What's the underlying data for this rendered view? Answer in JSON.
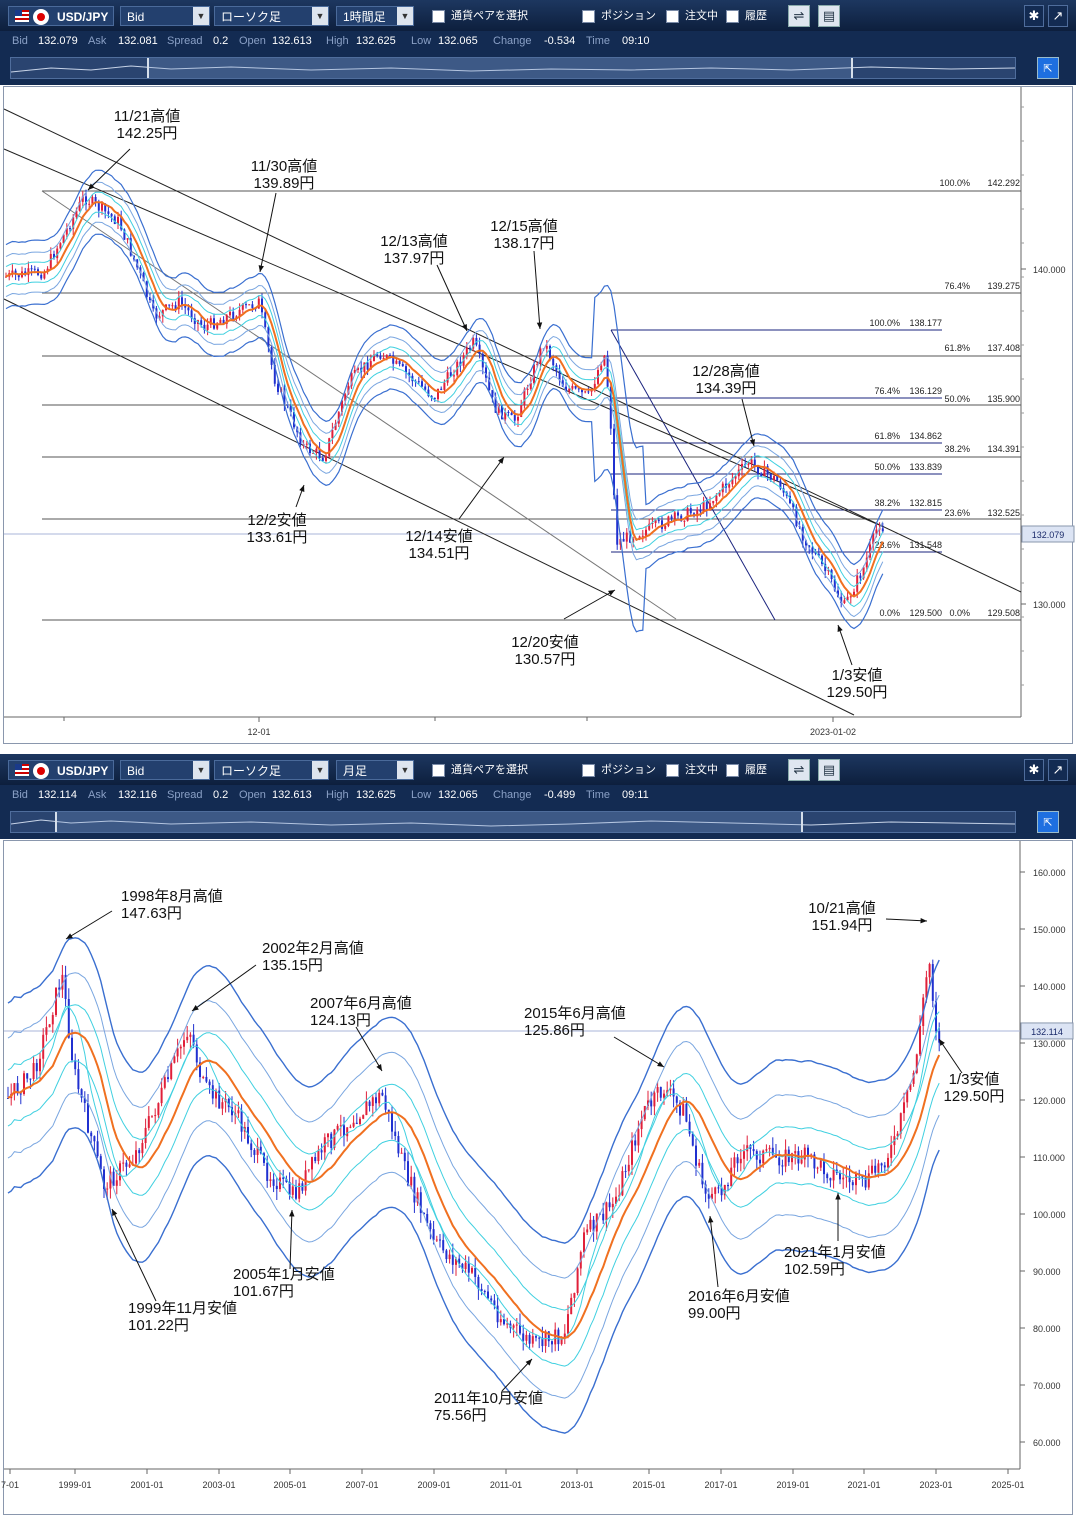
{
  "top": {
    "pair": "USD/JPY",
    "price_type": "Bid",
    "chart_type": "ローソク足",
    "timeframe": "1時間足",
    "select_pair": "通貨ペアを選択",
    "position": "ポジション",
    "orders": "注文中",
    "history": "履歴",
    "ticker": {
      "bid_label": "Bid",
      "bid": "132.079",
      "ask_label": "Ask",
      "ask": "132.081",
      "spread_label": "Spread",
      "spread": "0.2",
      "open_label": "Open",
      "open": "132.613",
      "high_label": "High",
      "high": "132.625",
      "low_label": "Low",
      "low": "132.065",
      "change_label": "Change",
      "change": "-0.534",
      "time_label": "Time",
      "time": "09:10"
    },
    "current_price": "132.079",
    "y_ticks": [
      "140.000",
      "130.000"
    ],
    "x_ticks": [
      "12-01",
      "2023-01-02"
    ],
    "fib_labels": [
      {
        "t": "100.0%",
        "v": "142.292"
      },
      {
        "t": "76.4%",
        "v": "139.275"
      },
      {
        "t": "61.8%",
        "v": "137.408"
      },
      {
        "t": "50.0%",
        "v": "135.900"
      },
      {
        "t": "38.2%",
        "v": "134.391"
      },
      {
        "t": "23.6%",
        "v": "132.525"
      },
      {
        "t": "0.0%",
        "v": "129.508"
      },
      {
        "t": "100.0%",
        "v": "138.177"
      },
      {
        "t": "76.4%",
        "v": "136.129"
      },
      {
        "t": "61.8%",
        "v": "134.862"
      },
      {
        "t": "50.0%",
        "v": "133.839"
      },
      {
        "t": "38.2%",
        "v": "132.815"
      },
      {
        "t": "23.6%",
        "v": "131.548"
      },
      {
        "t": "0.0%",
        "v": "129.500"
      }
    ],
    "annotations": [
      {
        "l1": "11/21高値",
        "l2": "142.25円"
      },
      {
        "l1": "11/30高値",
        "l2": "139.89円"
      },
      {
        "l1": "12/13高値",
        "l2": "137.97円"
      },
      {
        "l1": "12/15高値",
        "l2": "138.17円"
      },
      {
        "l1": "12/28高値",
        "l2": "134.39円"
      },
      {
        "l1": "12/2安値",
        "l2": "133.61円"
      },
      {
        "l1": "12/14安値",
        "l2": "134.51円"
      },
      {
        "l1": "12/20安値",
        "l2": "130.57円"
      },
      {
        "l1": "1/3安値",
        "l2": "129.50円"
      }
    ]
  },
  "bottom": {
    "pair": "USD/JPY",
    "price_type": "Bid",
    "chart_type": "ローソク足",
    "timeframe": "月足",
    "select_pair": "通貨ペアを選択",
    "position": "ポジション",
    "orders": "注文中",
    "history": "履歴",
    "ticker": {
      "bid_label": "Bid",
      "bid": "132.114",
      "ask_label": "Ask",
      "ask": "132.116",
      "spread_label": "Spread",
      "spread": "0.2",
      "open_label": "Open",
      "open": "132.613",
      "high_label": "High",
      "high": "132.625",
      "low_label": "Low",
      "low": "132.065",
      "change_label": "Change",
      "change": "-0.499",
      "time_label": "Time",
      "time": "09:11"
    },
    "current_price": "132.114",
    "y_ticks": [
      "160.000",
      "150.000",
      "140.000",
      "130.000",
      "120.000",
      "110.000",
      "100.000",
      "90.000",
      "80.000",
      "70.000",
      "60.000"
    ],
    "x_ticks": [
      "7-01",
      "1999-01",
      "2001-01",
      "2003-01",
      "2005-01",
      "2007-01",
      "2009-01",
      "2011-01",
      "2013-01",
      "2015-01",
      "2017-01",
      "2019-01",
      "2021-01",
      "2023-01",
      "2025-01"
    ],
    "annotations": [
      {
        "l1": "1998年8月高値",
        "l2": "147.63円"
      },
      {
        "l1": "2002年2月高値",
        "l2": "135.15円"
      },
      {
        "l1": "2007年6月高値",
        "l2": "124.13円"
      },
      {
        "l1": "2015年6月高値",
        "l2": "125.86円"
      },
      {
        "l1": "10/21高値",
        "l2": "151.94円"
      },
      {
        "l1": "1999年11月安値",
        "l2": "101.22円"
      },
      {
        "l1": "2005年1月安値",
        "l2": "101.67円"
      },
      {
        "l1": "2011年10月安値",
        "l2": "75.56円"
      },
      {
        "l1": "2016年6月安値",
        "l2": "99.00円"
      },
      {
        "l1": "2021年1月安値",
        "l2": "102.59円"
      },
      {
        "l1": "1/3安値",
        "l2": "129.50円"
      }
    ]
  },
  "colors": {
    "toolbar": "#132b52",
    "candle_up": "#e0203a",
    "candle_down": "#2030d0",
    "ma": "#f07020",
    "band_dark": "#3a6fd0",
    "band_mid": "#7aa6e0",
    "band_light": "#40d0e0",
    "fib": "#1a237e"
  }
}
